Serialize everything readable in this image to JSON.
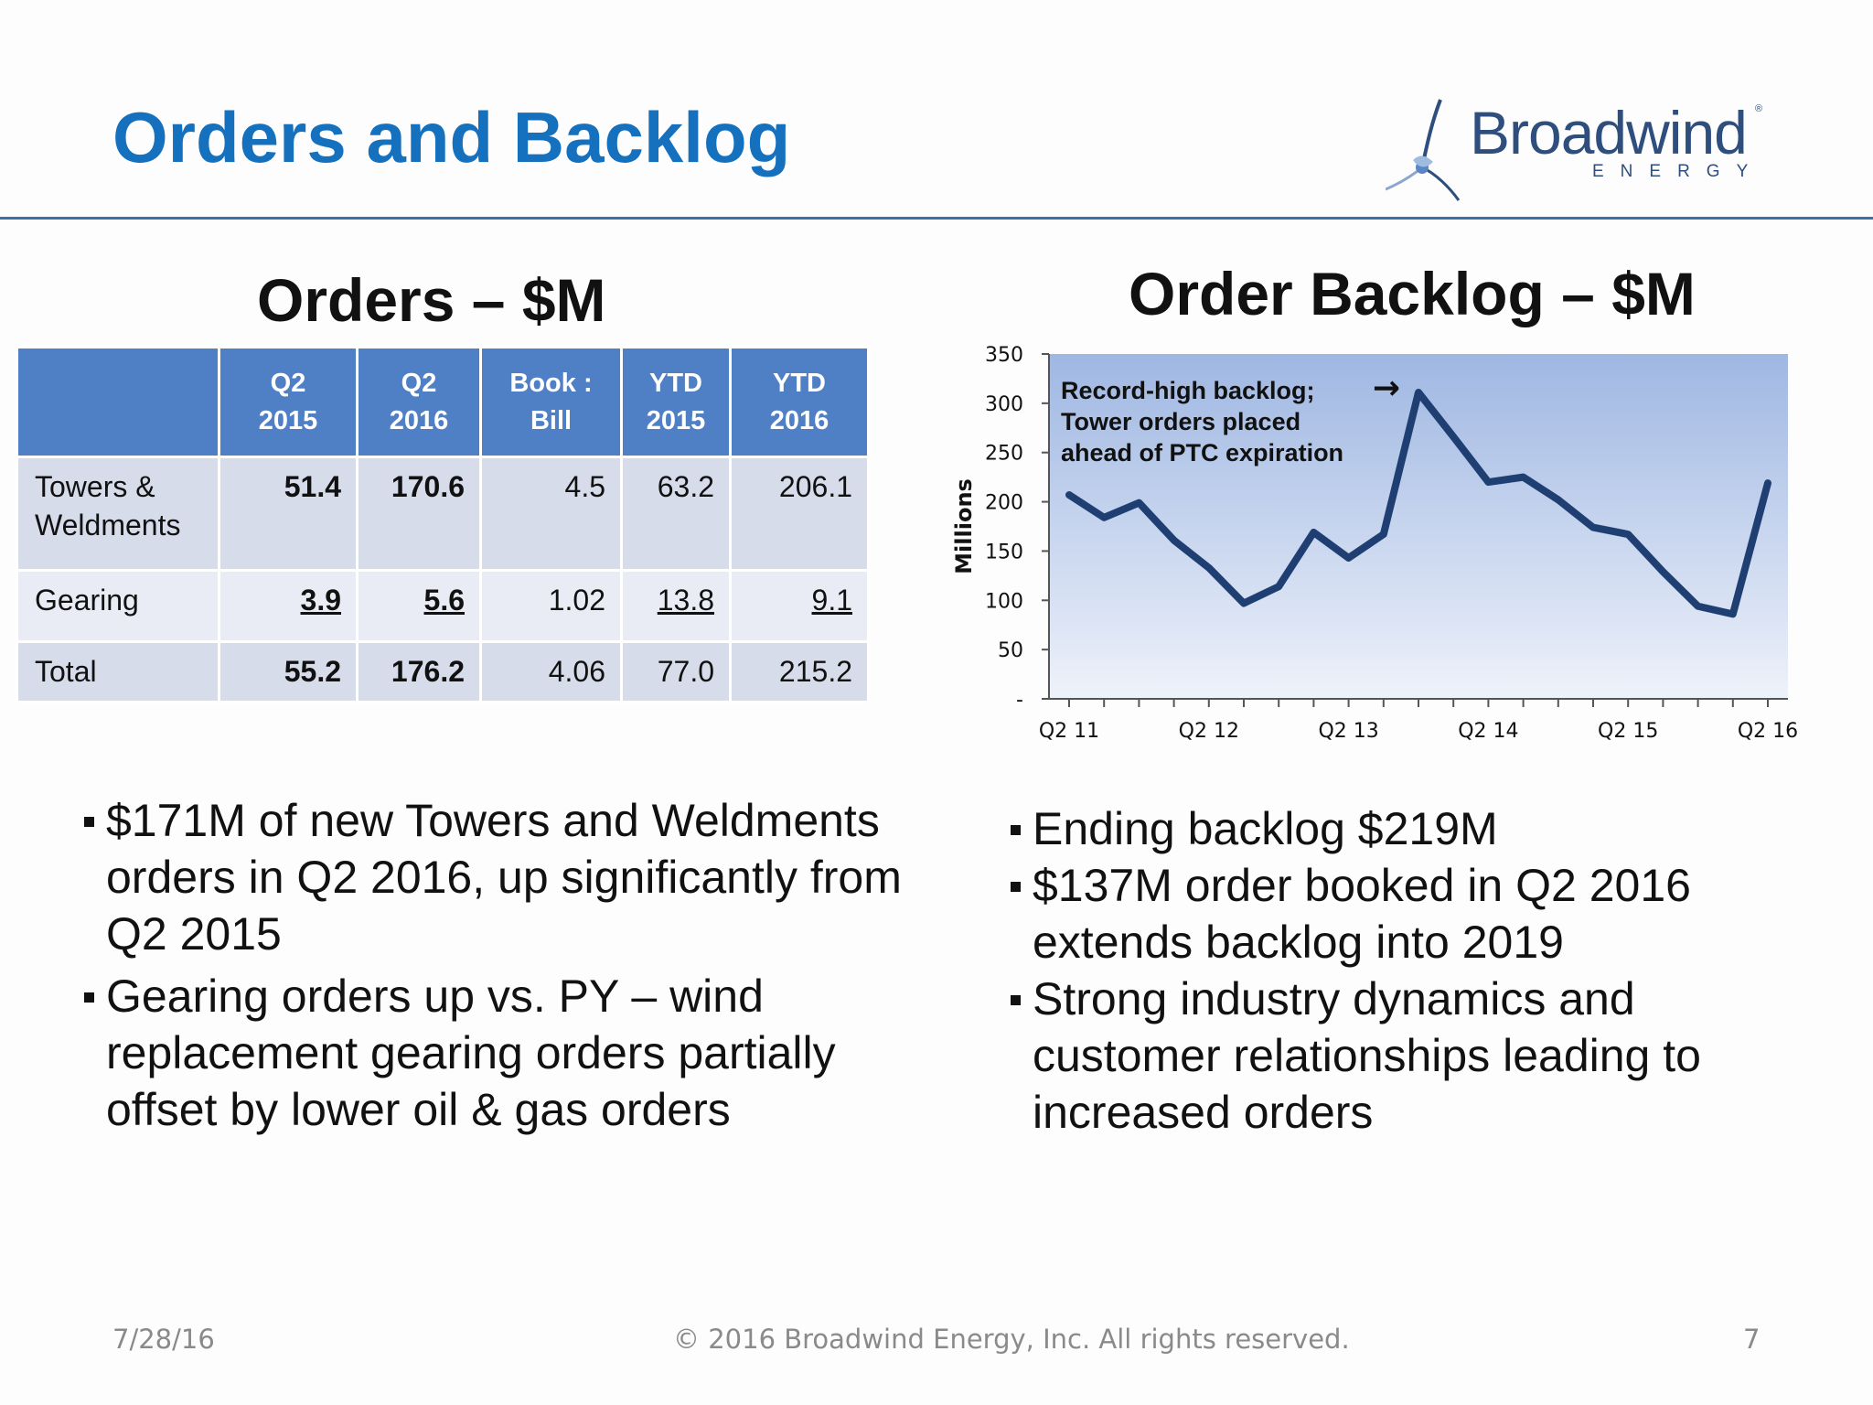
{
  "slide": {
    "title": "Orders and Backlog",
    "logo": {
      "word": "Broadwind",
      "reg": "®",
      "sub": "ENERGY"
    }
  },
  "orders": {
    "title": "Orders – $M",
    "table": {
      "headers": [
        {
          "line1": "",
          "line2": ""
        },
        {
          "line1": "Q2",
          "line2": "2015"
        },
        {
          "line1": "Q2",
          "line2": "2016"
        },
        {
          "line1": "Book :",
          "line2": "Bill"
        },
        {
          "line1": "YTD",
          "line2": "2015"
        },
        {
          "line1": "YTD",
          "line2": "2016"
        }
      ],
      "rows": [
        {
          "label_line1": "Towers &",
          "label_line2": "Weldments",
          "values": [
            "51.4",
            "170.6",
            "4.5",
            "63.2",
            "206.1"
          ]
        },
        {
          "label_line1": "Gearing",
          "label_line2": "",
          "values": [
            "3.9",
            "5.6",
            "1.02",
            "13.8",
            "9.1"
          ]
        },
        {
          "label_line1": "Total",
          "label_line2": "",
          "values": [
            "55.2",
            "176.2",
            "4.06",
            "77.0",
            "215.2"
          ]
        }
      ]
    },
    "bullets": [
      "$171M of new Towers and Weldments orders in Q2 2016, up significantly from Q2 2015",
      "Gearing orders up vs. PY – wind replacement gearing orders partially offset by lower oil & gas orders"
    ]
  },
  "backlog": {
    "title": "Order Backlog – $M",
    "bullets": [
      "Ending backlog $219M",
      "$137M order booked in Q2 2016 extends backlog into 2019",
      "Strong industry dynamics and customer relationships leading to increased orders"
    ]
  },
  "chart_data": {
    "type": "line",
    "title": "Order Backlog – $M",
    "ylabel": "Millions",
    "xlabel": "",
    "ylim": [
      0,
      350
    ],
    "y_ticks": [
      "-",
      "50",
      "100",
      "150",
      "200",
      "250",
      "300",
      "350"
    ],
    "y_tick_values": [
      0,
      50,
      100,
      150,
      200,
      250,
      300,
      350
    ],
    "x_tick_labels": [
      "Q2 11",
      "Q2 12",
      "Q2 13",
      "Q2 14",
      "Q2 15",
      "Q2 16"
    ],
    "x_tick_index": [
      0,
      4,
      8,
      12,
      16,
      20
    ],
    "categories": [
      "Q2 11",
      "Q3 11",
      "Q4 11",
      "Q1 12",
      "Q2 12",
      "Q3 12",
      "Q4 12",
      "Q1 13",
      "Q2 13",
      "Q3 13",
      "Q4 13",
      "Q1 14",
      "Q2 14",
      "Q3 14",
      "Q4 14",
      "Q1 15",
      "Q2 15",
      "Q3 15",
      "Q4 15",
      "Q1 16",
      "Q2 16"
    ],
    "series": [
      {
        "values": [
          207,
          184,
          199,
          161,
          133,
          97,
          114,
          169,
          143,
          167,
          311,
          266,
          220,
          225,
          202,
          174,
          167,
          129,
          94,
          86,
          219
        ],
        "color": "#1f3f73"
      }
    ],
    "annotation": {
      "lines": [
        "Record-high backlog;",
        "Tower orders placed",
        "ahead of PTC expiration"
      ],
      "arrow": "→",
      "target_index": 10
    },
    "plot_gradient": [
      "#9fb7e2",
      "#eef2fa"
    ],
    "grid": false
  },
  "footer": {
    "date": "7/28/16",
    "copyright": "© 2016 Broadwind Energy, Inc. All rights reserved.",
    "page": "7"
  }
}
